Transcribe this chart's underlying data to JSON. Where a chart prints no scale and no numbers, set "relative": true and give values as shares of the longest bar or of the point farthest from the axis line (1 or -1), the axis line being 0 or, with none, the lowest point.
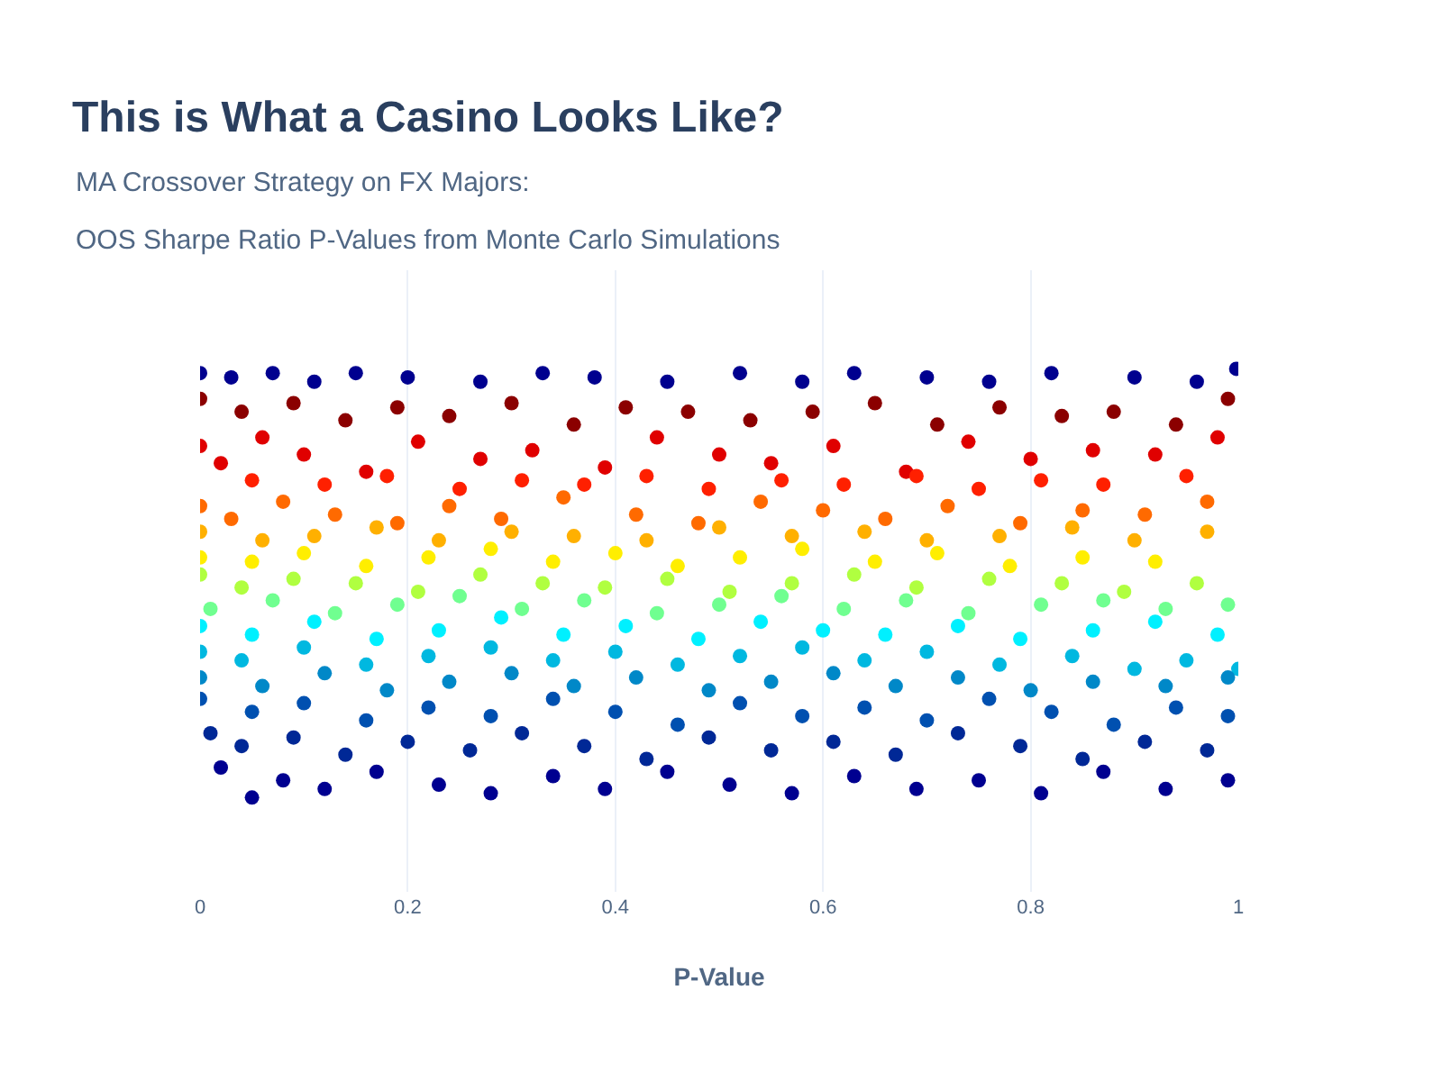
{
  "chart_data": {
    "type": "scatter",
    "title": "This is What a Casino Looks Like?",
    "subtitle": "MA Crossover Strategy on FX Majors:\nOOS Sharpe Ratio P-Values from Monte Carlo Simulations",
    "xlabel": "P-Value",
    "relative": true,
    "xlim": [
      0,
      1
    ],
    "xticks": [
      0,
      {
        "value": 0.2,
        "label": "0.2"
      },
      {
        "value": 0.4,
        "label": "0.4"
      },
      {
        "value": 0.6,
        "label": "0.6"
      },
      {
        "value": 0.8,
        "label": "0.8"
      },
      1
    ],
    "grid": "x",
    "marker": "circle",
    "series": [
      {
        "color": "#00008f",
        "x": [
          0.0,
          0.03,
          0.07,
          0.11,
          0.15,
          0.2,
          0.27,
          0.33,
          0.38,
          0.45,
          0.52,
          0.58,
          0.63,
          0.7,
          0.76,
          0.82,
          0.9,
          0.96,
          0.998
        ],
        "values": [
          0.99,
          0.98,
          0.99,
          0.97,
          0.99,
          0.98,
          0.97,
          0.99,
          0.98,
          0.97,
          0.99,
          0.97,
          0.99,
          0.98,
          0.97,
          0.99,
          0.98,
          0.97,
          1.0
        ]
      },
      {
        "color": "#8b0000",
        "x": [
          0.0,
          0.04,
          0.09,
          0.14,
          0.19,
          0.24,
          0.3,
          0.36,
          0.41,
          0.47,
          0.53,
          0.59,
          0.65,
          0.71,
          0.77,
          0.83,
          0.88,
          0.94,
          0.99
        ],
        "values": [
          0.93,
          0.9,
          0.92,
          0.88,
          0.91,
          0.89,
          0.92,
          0.87,
          0.91,
          0.9,
          0.88,
          0.9,
          0.92,
          0.87,
          0.91,
          0.89,
          0.9,
          0.87,
          0.93
        ]
      },
      {
        "color": "#e00000",
        "x": [
          0.0,
          0.02,
          0.06,
          0.1,
          0.16,
          0.21,
          0.27,
          0.32,
          0.39,
          0.44,
          0.5,
          0.55,
          0.61,
          0.68,
          0.74,
          0.8,
          0.86,
          0.92,
          0.98
        ],
        "values": [
          0.82,
          0.78,
          0.84,
          0.8,
          0.76,
          0.83,
          0.79,
          0.81,
          0.77,
          0.84,
          0.8,
          0.78,
          0.82,
          0.76,
          0.83,
          0.79,
          0.81,
          0.8,
          0.84
        ]
      },
      {
        "color": "#ff2000",
        "x": [
          0.05,
          0.12,
          0.18,
          0.25,
          0.31,
          0.37,
          0.43,
          0.49,
          0.56,
          0.62,
          0.69,
          0.75,
          0.81,
          0.87,
          0.95
        ],
        "values": [
          0.74,
          0.73,
          0.75,
          0.72,
          0.74,
          0.73,
          0.75,
          0.72,
          0.74,
          0.73,
          0.75,
          0.72,
          0.74,
          0.73,
          0.75
        ]
      },
      {
        "color": "#ff6a00",
        "x": [
          0.0,
          0.03,
          0.08,
          0.13,
          0.19,
          0.24,
          0.29,
          0.35,
          0.42,
          0.48,
          0.54,
          0.6,
          0.66,
          0.72,
          0.79,
          0.85,
          0.91,
          0.97
        ],
        "values": [
          0.68,
          0.65,
          0.69,
          0.66,
          0.64,
          0.68,
          0.65,
          0.7,
          0.66,
          0.64,
          0.69,
          0.67,
          0.65,
          0.68,
          0.64,
          0.67,
          0.66,
          0.69
        ]
      },
      {
        "color": "#ffb000",
        "x": [
          0.0,
          0.06,
          0.11,
          0.17,
          0.23,
          0.3,
          0.36,
          0.43,
          0.5,
          0.57,
          0.64,
          0.7,
          0.77,
          0.84,
          0.9,
          0.97
        ],
        "values": [
          0.62,
          0.6,
          0.61,
          0.63,
          0.6,
          0.62,
          0.61,
          0.6,
          0.63,
          0.61,
          0.62,
          0.6,
          0.61,
          0.63,
          0.6,
          0.62
        ]
      },
      {
        "color": "#ffee00",
        "x": [
          0.0,
          0.05,
          0.1,
          0.16,
          0.22,
          0.28,
          0.34,
          0.4,
          0.46,
          0.52,
          0.58,
          0.65,
          0.71,
          0.78,
          0.85,
          0.92
        ],
        "values": [
          0.56,
          0.55,
          0.57,
          0.54,
          0.56,
          0.58,
          0.55,
          0.57,
          0.54,
          0.56,
          0.58,
          0.55,
          0.57,
          0.54,
          0.56,
          0.55
        ]
      },
      {
        "color": "#b0ff40",
        "x": [
          0.0,
          0.04,
          0.09,
          0.15,
          0.21,
          0.27,
          0.33,
          0.39,
          0.45,
          0.51,
          0.57,
          0.63,
          0.69,
          0.76,
          0.83,
          0.89,
          0.96
        ],
        "values": [
          0.52,
          0.49,
          0.51,
          0.5,
          0.48,
          0.52,
          0.5,
          0.49,
          0.51,
          0.48,
          0.5,
          0.52,
          0.49,
          0.51,
          0.5,
          0.48,
          0.5
        ]
      },
      {
        "color": "#70ff90",
        "x": [
          0.01,
          0.07,
          0.13,
          0.19,
          0.25,
          0.31,
          0.37,
          0.44,
          0.5,
          0.56,
          0.62,
          0.68,
          0.74,
          0.81,
          0.87,
          0.93,
          0.99
        ],
        "values": [
          0.44,
          0.46,
          0.43,
          0.45,
          0.47,
          0.44,
          0.46,
          0.43,
          0.45,
          0.47,
          0.44,
          0.46,
          0.43,
          0.45,
          0.46,
          0.44,
          0.45
        ]
      },
      {
        "color": "#00f0ff",
        "x": [
          0.0,
          0.05,
          0.11,
          0.17,
          0.23,
          0.29,
          0.35,
          0.41,
          0.48,
          0.54,
          0.6,
          0.66,
          0.73,
          0.79,
          0.86,
          0.92,
          0.98
        ],
        "values": [
          0.4,
          0.38,
          0.41,
          0.37,
          0.39,
          0.42,
          0.38,
          0.4,
          0.37,
          0.41,
          0.39,
          0.38,
          0.4,
          0.37,
          0.39,
          0.41,
          0.38
        ]
      },
      {
        "color": "#00b8e0",
        "x": [
          0.0,
          0.04,
          0.1,
          0.16,
          0.22,
          0.28,
          0.34,
          0.4,
          0.46,
          0.52,
          0.58,
          0.64,
          0.7,
          0.77,
          0.84,
          0.9,
          0.95,
          1.0
        ],
        "values": [
          0.34,
          0.32,
          0.35,
          0.31,
          0.33,
          0.35,
          0.32,
          0.34,
          0.31,
          0.33,
          0.35,
          0.32,
          0.34,
          0.31,
          0.33,
          0.3,
          0.32,
          0.3
        ]
      },
      {
        "color": "#0088c8",
        "x": [
          0.0,
          0.06,
          0.12,
          0.18,
          0.24,
          0.3,
          0.36,
          0.42,
          0.49,
          0.55,
          0.61,
          0.67,
          0.73,
          0.8,
          0.86,
          0.93,
          0.99
        ],
        "values": [
          0.28,
          0.26,
          0.29,
          0.25,
          0.27,
          0.29,
          0.26,
          0.28,
          0.25,
          0.27,
          0.29,
          0.26,
          0.28,
          0.25,
          0.27,
          0.26,
          0.28
        ]
      },
      {
        "color": "#0050b0",
        "x": [
          0.0,
          0.05,
          0.1,
          0.16,
          0.22,
          0.28,
          0.34,
          0.4,
          0.46,
          0.52,
          0.58,
          0.64,
          0.7,
          0.76,
          0.82,
          0.88,
          0.94,
          0.99
        ],
        "values": [
          0.23,
          0.2,
          0.22,
          0.18,
          0.21,
          0.19,
          0.23,
          0.2,
          0.17,
          0.22,
          0.19,
          0.21,
          0.18,
          0.23,
          0.2,
          0.17,
          0.21,
          0.19
        ]
      },
      {
        "color": "#002896",
        "x": [
          0.01,
          0.04,
          0.09,
          0.14,
          0.2,
          0.26,
          0.31,
          0.37,
          0.43,
          0.49,
          0.55,
          0.61,
          0.67,
          0.73,
          0.79,
          0.85,
          0.91,
          0.97
        ],
        "values": [
          0.15,
          0.12,
          0.14,
          0.1,
          0.13,
          0.11,
          0.15,
          0.12,
          0.09,
          0.14,
          0.11,
          0.13,
          0.1,
          0.15,
          0.12,
          0.09,
          0.13,
          0.11
        ]
      },
      {
        "color": "#000090",
        "x": [
          0.02,
          0.05,
          0.08,
          0.12,
          0.17,
          0.23,
          0.28,
          0.34,
          0.39,
          0.45,
          0.51,
          0.57,
          0.63,
          0.69,
          0.75,
          0.81,
          0.87,
          0.93,
          0.99
        ],
        "values": [
          0.07,
          0.0,
          0.04,
          0.02,
          0.06,
          0.03,
          0.01,
          0.05,
          0.02,
          0.06,
          0.03,
          0.01,
          0.05,
          0.02,
          0.04,
          0.01,
          0.06,
          0.02,
          0.04
        ]
      }
    ]
  }
}
